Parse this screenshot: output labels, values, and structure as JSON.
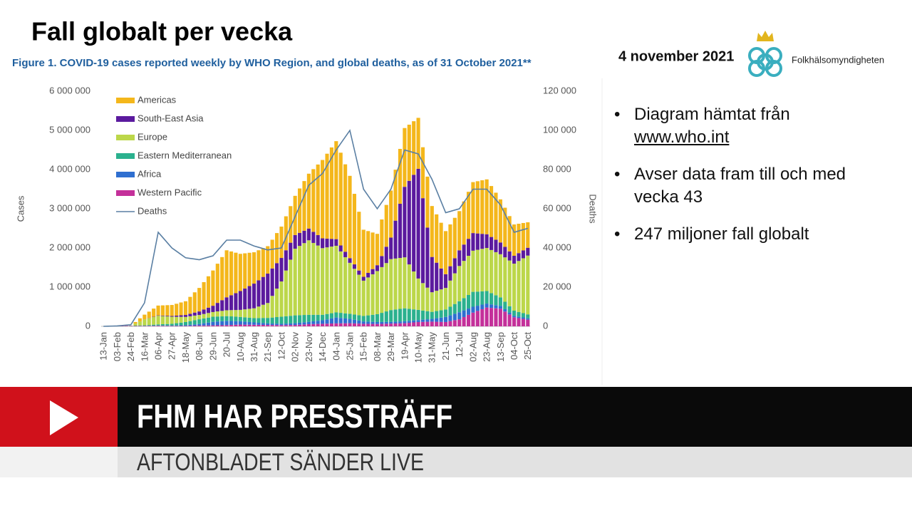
{
  "slide": {
    "title": "Fall globalt per vecka",
    "date": "4 november 2021",
    "logo_text": "Folkhälsomyndigheten",
    "bullets": [
      {
        "text": "Diagram hämtat från",
        "link": "www.who.int"
      },
      {
        "text": "Avser data fram till och med vecka 43"
      },
      {
        "text": "247 miljoner fall globalt"
      }
    ]
  },
  "broadcast": {
    "headline": "FHM HAR PRESSTRÄFF",
    "subline": "AFTONBLADET SÄNDER LIVE"
  },
  "chart_data": {
    "type": "bar",
    "title": "Figure 1. COVID-19 cases reported weekly by WHO Region, and global deaths, as of 31 October 2021**",
    "y_label": "Cases",
    "y2_label": "Deaths",
    "ylim": [
      0,
      6000000
    ],
    "yticks": [
      0,
      {
        "value": 1000000,
        "label": "1 000 000"
      },
      {
        "value": 2000000,
        "label": "2 000 000"
      },
      {
        "value": 3000000,
        "label": "3 000 000"
      },
      {
        "value": 4000000,
        "label": "4 000 000"
      },
      {
        "value": 5000000,
        "label": "5 000 000"
      },
      {
        "value": 6000000,
        "label": "6 000 000"
      }
    ],
    "y2lim": [
      0,
      120000
    ],
    "y2ticks": [
      0,
      {
        "value": 20000,
        "label": "20 000"
      },
      {
        "value": 40000,
        "label": "40 000"
      },
      {
        "value": 60000,
        "label": "60 000"
      },
      {
        "value": 80000,
        "label": "80 000"
      },
      {
        "value": 100000,
        "label": "100 000"
      },
      {
        "value": 120000,
        "label": "120 000"
      }
    ],
    "categories": [
      "13-Jan",
      null,
      null,
      "03-Feb",
      null,
      null,
      "24-Feb",
      null,
      null,
      "16-Mar",
      null,
      null,
      "06-Apr",
      null,
      null,
      "27-Apr",
      null,
      null,
      "18-May",
      null,
      null,
      "08-Jun",
      null,
      null,
      "29-Jun",
      null,
      null,
      "20-Jul",
      null,
      null,
      "10-Aug",
      null,
      null,
      "31-Aug",
      null,
      null,
      "21-Sep",
      null,
      null,
      "12-Oct",
      null,
      null,
      "02-Nov",
      null,
      null,
      "23-Nov",
      null,
      null,
      "14-Dec",
      null,
      null,
      "04-Jan",
      null,
      null,
      "25-Jan",
      null,
      null,
      "15-Feb",
      null,
      null,
      "08-Mar",
      null,
      null,
      "29-Mar",
      null,
      null,
      "19-Apr",
      null,
      null,
      "10-May",
      null,
      null,
      "31-May",
      null,
      null,
      "21-Jun",
      null,
      null,
      "12-Jul",
      null,
      null,
      "02-Aug",
      null,
      null,
      "23-Aug",
      null,
      null,
      "13-Sep",
      null,
      null,
      "04-Oct",
      null,
      null,
      "25-Oct"
    ],
    "series": [
      {
        "name": "Western Pacific",
        "color": "#c4309a",
        "values": [
          0,
          5000,
          10000,
          15000,
          13000,
          12000,
          10000,
          10000,
          10000,
          10000,
          12000,
          13000,
          15000,
          13000,
          12000,
          10000,
          10000,
          10000,
          10000,
          13000,
          17000,
          20000,
          22000,
          23000,
          25000,
          27000,
          28000,
          30000,
          35000,
          40000,
          45000,
          43000,
          42000,
          40000,
          38000,
          37000,
          35000,
          33000,
          32000,
          30000,
          32000,
          33000,
          35000,
          42000,
          48000,
          55000,
          58000,
          62000,
          65000,
          68000,
          72000,
          75000,
          77000,
          78000,
          80000,
          75000,
          70000,
          65000,
          63000,
          62000,
          60000,
          63000,
          67000,
          70000,
          73000,
          77000,
          80000,
          90000,
          100000,
          110000,
          113000,
          117000,
          120000,
          117000,
          113000,
          110000,
          133000,
          157000,
          180000,
          237000,
          293000,
          350000,
          393000,
          437000,
          480000,
          470000,
          460000,
          450000,
          377000,
          303000,
          230000,
          210000,
          190000,
          170000
        ]
      },
      {
        "name": "Africa",
        "color": "#2f6fd0",
        "values": [
          0,
          0,
          0,
          0,
          0,
          0,
          0,
          0,
          1000,
          1000,
          2000,
          4000,
          5000,
          7000,
          8000,
          10000,
          13000,
          17000,
          20000,
          27000,
          33000,
          40000,
          57000,
          73000,
          90000,
          97000,
          103000,
          110000,
          102000,
          93000,
          85000,
          77000,
          68000,
          60000,
          53000,
          47000,
          40000,
          38000,
          37000,
          35000,
          38000,
          42000,
          45000,
          50000,
          55000,
          60000,
          70000,
          80000,
          90000,
          110000,
          130000,
          150000,
          137000,
          123000,
          110000,
          93000,
          77000,
          60000,
          57000,
          53000,
          50000,
          48000,
          47000,
          45000,
          47000,
          48000,
          50000,
          50000,
          50000,
          50000,
          57000,
          63000,
          70000,
          90000,
          110000,
          130000,
          147000,
          163000,
          180000,
          170000,
          160000,
          150000,
          133000,
          117000,
          100000,
          90000,
          80000,
          70000,
          60000,
          50000,
          40000,
          38000,
          37000,
          35000
        ]
      },
      {
        "name": "Eastern Mediterranean",
        "color": "#2bb18e",
        "values": [
          0,
          0,
          0,
          0,
          2000,
          3000,
          5000,
          8000,
          12000,
          15000,
          20000,
          25000,
          30000,
          35000,
          40000,
          45000,
          57000,
          68000,
          80000,
          93000,
          107000,
          120000,
          123000,
          127000,
          130000,
          127000,
          123000,
          120000,
          117000,
          113000,
          110000,
          110000,
          110000,
          110000,
          120000,
          130000,
          140000,
          153000,
          167000,
          180000,
          187000,
          193000,
          200000,
          193000,
          187000,
          180000,
          167000,
          153000,
          140000,
          137000,
          133000,
          130000,
          130000,
          130000,
          130000,
          133000,
          137000,
          140000,
          160000,
          180000,
          200000,
          233000,
          267000,
          300000,
          310000,
          320000,
          330000,
          307000,
          283000,
          260000,
          233000,
          207000,
          180000,
          183000,
          187000,
          190000,
          220000,
          250000,
          280000,
          313000,
          347000,
          380000,
          360000,
          340000,
          320000,
          287000,
          253000,
          220000,
          190000,
          160000,
          130000,
          120000,
          110000,
          100000
        ]
      },
      {
        "name": "Europe",
        "color": "#bcd74a",
        "values": [
          0,
          0,
          0,
          0,
          1000,
          1000,
          2000,
          51000,
          101000,
          150000,
          173000,
          197000,
          220000,
          207000,
          193000,
          180000,
          163000,
          147000,
          130000,
          123000,
          117000,
          110000,
          113000,
          117000,
          120000,
          130000,
          140000,
          150000,
          160000,
          170000,
          180000,
          203000,
          227000,
          250000,
          293000,
          337000,
          380000,
          553000,
          727000,
          900000,
          1167000,
          1433000,
          1700000,
          1767000,
          1833000,
          1900000,
          1833000,
          1767000,
          1700000,
          1700000,
          1700000,
          1700000,
          1567000,
          1433000,
          1300000,
          1167000,
          1033000,
          900000,
          967000,
          1033000,
          1100000,
          1167000,
          1233000,
          1300000,
          1300000,
          1300000,
          1300000,
          1133000,
          967000,
          800000,
          700000,
          600000,
          500000,
          517000,
          533000,
          550000,
          667000,
          783000,
          900000,
          950000,
          1000000,
          1050000,
          1067000,
          1083000,
          1100000,
          1100000,
          1100000,
          1100000,
          1133000,
          1167000,
          1200000,
          1300000,
          1400000,
          1500000
        ]
      },
      {
        "name": "South-East Asia",
        "color": "#5b1a9e",
        "values": [
          0,
          0,
          0,
          0,
          0,
          0,
          0,
          1000,
          1000,
          2000,
          5000,
          7000,
          10000,
          13000,
          17000,
          20000,
          30000,
          40000,
          50000,
          63000,
          77000,
          90000,
          113000,
          137000,
          160000,
          217000,
          273000,
          330000,
          380000,
          430000,
          480000,
          530000,
          580000,
          630000,
          670000,
          710000,
          750000,
          700000,
          650000,
          600000,
          517000,
          433000,
          350000,
          333000,
          317000,
          300000,
          283000,
          267000,
          250000,
          223000,
          197000,
          170000,
          153000,
          137000,
          120000,
          113000,
          107000,
          100000,
          117000,
          133000,
          150000,
          283000,
          417000,
          550000,
          967000,
          1383000,
          1800000,
          2133000,
          2467000,
          2800000,
          2167000,
          1533000,
          900000,
          717000,
          533000,
          350000,
          367000,
          383000,
          400000,
          417000,
          433000,
          450000,
          417000,
          383000,
          350000,
          333000,
          317000,
          300000,
          267000,
          233000,
          200000,
          200000,
          200000,
          200000
        ]
      },
      {
        "name": "Americas",
        "color": "#f4b71b",
        "values": [
          0,
          0,
          0,
          0,
          0,
          0,
          0,
          40000,
          80000,
          120000,
          163000,
          207000,
          250000,
          260000,
          270000,
          280000,
          303000,
          327000,
          350000,
          433000,
          517000,
          600000,
          700000,
          800000,
          900000,
          1000000,
          1100000,
          1200000,
          1117000,
          1033000,
          950000,
          900000,
          850000,
          800000,
          767000,
          733000,
          700000,
          733000,
          767000,
          800000,
          867000,
          933000,
          1000000,
          1133000,
          1267000,
          1400000,
          1600000,
          1800000,
          2000000,
          2167000,
          2333000,
          2500000,
          2367000,
          2233000,
          2100000,
          1800000,
          1500000,
          1200000,
          1067000,
          933000,
          800000,
          933000,
          1067000,
          1200000,
          1300000,
          1400000,
          1500000,
          1433000,
          1367000,
          1300000,
          1300000,
          1300000,
          1300000,
          1233000,
          1167000,
          1100000,
          1067000,
          1033000,
          1000000,
          1100000,
          1200000,
          1300000,
          1333000,
          1367000,
          1400000,
          1300000,
          1200000,
          1100000,
          1000000,
          900000,
          800000,
          750000,
          700000,
          650000
        ]
      },
      {
        "name": "Deaths",
        "color": "#5a7fa3",
        "axis": "y2",
        "values": [
          0,
          67,
          133,
          200,
          400,
          600,
          800,
          4533,
          8267,
          12000,
          24000,
          36000,
          48000,
          45333,
          42667,
          40000,
          38333,
          36667,
          35000,
          34667,
          34333,
          34000,
          34667,
          35333,
          36000,
          38667,
          41333,
          44000,
          44000,
          44000,
          44000,
          43000,
          42000,
          41000,
          40333,
          39667,
          39000,
          39333,
          39667,
          40000,
          45333,
          50667,
          56000,
          61333,
          66667,
          72000,
          74000,
          76000,
          78000,
          82000,
          86000,
          90000,
          93333,
          96667,
          100000,
          90000,
          80000,
          70000,
          66667,
          63333,
          60000,
          63333,
          66667,
          70000,
          76667,
          83333,
          90000,
          89333,
          88667,
          88000,
          83667,
          79333,
          75000,
          69333,
          63667,
          58000,
          58667,
          59333,
          60000,
          63333,
          66667,
          70000,
          70000,
          70000,
          70000,
          67333,
          64667,
          62000,
          57333,
          52667,
          48000,
          48667,
          49333,
          50000
        ]
      }
    ]
  }
}
